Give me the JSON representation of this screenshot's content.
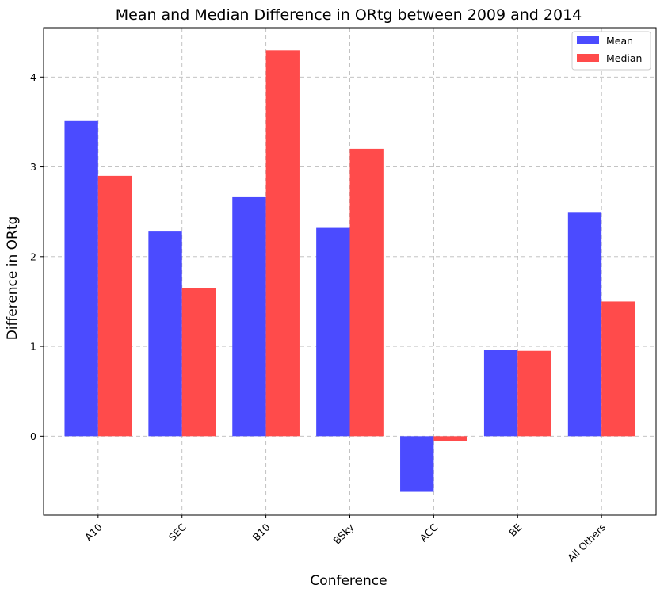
{
  "chart_data": {
    "type": "bar",
    "title": "Mean and Median Difference in ORtg between 2009 and 2014",
    "xlabel": "Conference",
    "ylabel": "Difference in ORtg",
    "categories": [
      "A10",
      "SEC",
      "B10",
      "BSky",
      "ACC",
      "BE",
      "All Others"
    ],
    "series": [
      {
        "name": "Mean",
        "color": "#4b4bff",
        "values": [
          3.51,
          2.28,
          2.67,
          2.32,
          -0.62,
          0.96,
          2.49
        ]
      },
      {
        "name": "Median",
        "color": "#ff4b4b",
        "values": [
          2.9,
          1.65,
          4.3,
          3.2,
          -0.05,
          0.95,
          1.5
        ]
      }
    ],
    "ylim": [
      -0.88,
      4.55
    ],
    "yticks": [
      "0",
      "1",
      "2",
      "3",
      "4"
    ],
    "grid": true,
    "legend": "top-right"
  }
}
